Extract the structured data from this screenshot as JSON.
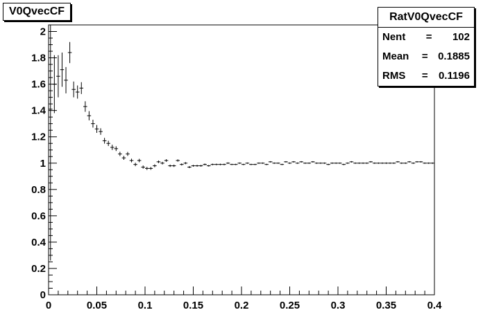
{
  "histogram_title": "V0QvecCF",
  "stats": {
    "name": "RatV0QvecCF",
    "rows": [
      {
        "label": "Nent",
        "value": "102"
      },
      {
        "label": "Mean ",
        "value": "0.1885"
      },
      {
        "label": "RMS  ",
        "value": "0.1196"
      }
    ]
  },
  "chart_data": {
    "type": "scatter",
    "style": "error-bar histogram",
    "title": "V0QvecCF",
    "xlabel": "",
    "ylabel": "",
    "xlim": [
      0,
      0.4
    ],
    "ylim": [
      0,
      2.05
    ],
    "x_ticks": [
      "0",
      "0.05",
      "0.1",
      "0.15",
      "0.2",
      "0.25",
      "0.3",
      "0.35",
      "0.4"
    ],
    "y_ticks": [
      "0",
      "0.2",
      "0.4",
      "0.6",
      "0.8",
      "1",
      "1.2",
      "1.4",
      "1.6",
      "1.8",
      "2"
    ],
    "grid": false,
    "legend": "top-right",
    "bin_width": 0.004,
    "x": [
      0.002,
      0.006,
      0.01,
      0.014,
      0.018,
      0.022,
      0.026,
      0.03,
      0.034,
      0.038,
      0.042,
      0.046,
      0.05,
      0.054,
      0.058,
      0.062,
      0.066,
      0.07,
      0.074,
      0.078,
      0.082,
      0.086,
      0.09,
      0.094,
      0.098,
      0.102,
      0.106,
      0.11,
      0.114,
      0.118,
      0.122,
      0.126,
      0.13,
      0.134,
      0.138,
      0.142,
      0.146,
      0.15,
      0.154,
      0.158,
      0.162,
      0.166,
      0.17,
      0.174,
      0.178,
      0.182,
      0.186,
      0.19,
      0.194,
      0.198,
      0.202,
      0.206,
      0.21,
      0.214,
      0.218,
      0.222,
      0.226,
      0.23,
      0.234,
      0.238,
      0.242,
      0.246,
      0.25,
      0.254,
      0.258,
      0.262,
      0.266,
      0.27,
      0.274,
      0.278,
      0.282,
      0.286,
      0.29,
      0.294,
      0.298,
      0.302,
      0.306,
      0.31,
      0.314,
      0.318,
      0.322,
      0.326,
      0.33,
      0.334,
      0.338,
      0.342,
      0.346,
      0.35,
      0.354,
      0.358,
      0.362,
      0.366,
      0.37,
      0.374,
      0.378,
      0.382,
      0.386,
      0.39,
      0.394,
      0.398
    ],
    "y": [
      1.41,
      1.6,
      1.66,
      1.71,
      1.63,
      1.84,
      1.56,
      1.54,
      1.57,
      1.43,
      1.36,
      1.3,
      1.26,
      1.24,
      1.17,
      1.15,
      1.12,
      1.11,
      1.07,
      1.04,
      1.07,
      1.02,
      0.99,
      1.02,
      0.97,
      0.96,
      0.96,
      0.98,
      1.01,
      1.0,
      1.02,
      0.98,
      0.98,
      1.02,
      0.99,
      1.0,
      0.97,
      0.98,
      0.98,
      0.98,
      0.99,
      0.98,
      0.99,
      0.99,
      0.99,
      0.99,
      1.0,
      0.99,
      0.99,
      1.0,
      0.99,
      1.0,
      0.99,
      0.99,
      1.0,
      1.0,
      0.99,
      1.01,
      1.0,
      1.0,
      0.99,
      1.01,
      1.0,
      1.01,
      1.0,
      1.01,
      1.0,
      1.0,
      1.01,
      1.0,
      1.0,
      1.0,
      0.99,
      1.0,
      1.0,
      1.0,
      0.99,
      1.0,
      1.01,
      1.0,
      1.0,
      1.0,
      1.0,
      1.01,
      1.0,
      1.0,
      1.0,
      1.0,
      1.0,
      1.0,
      1.01,
      1.0,
      1.0,
      1.01,
      1.0,
      1.01,
      1.01,
      1.0,
      1.0,
      1.0
    ],
    "yerr": [
      1.15,
      0.22,
      0.16,
      0.13,
      0.1,
      0.08,
      0.06,
      0.05,
      0.045,
      0.04,
      0.035,
      0.03,
      0.03,
      0.025,
      0.022,
      0.02,
      0.02,
      0.018,
      0.016,
      0.015,
      0.015,
      0.014,
      0.013,
      0.013,
      0.012,
      0.012,
      0.011,
      0.011,
      0.01,
      0.01,
      0.01,
      0.009,
      0.009,
      0.009,
      0.008,
      0.008,
      0.008,
      0.007,
      0.007,
      0.007,
      0.007,
      0.006,
      0.006,
      0.006,
      0.006,
      0.006,
      0.006,
      0.005,
      0.005,
      0.005,
      0.005,
      0.005,
      0.005,
      0.005,
      0.005,
      0.005,
      0.005,
      0.005,
      0.005,
      0.005,
      0.005,
      0.005,
      0.005,
      0.005,
      0.005,
      0.005,
      0.005,
      0.005,
      0.005,
      0.005,
      0.005,
      0.005,
      0.005,
      0.005,
      0.005,
      0.005,
      0.005,
      0.005,
      0.005,
      0.005,
      0.005,
      0.005,
      0.005,
      0.005,
      0.005,
      0.005,
      0.005,
      0.005,
      0.005,
      0.005,
      0.005,
      0.005,
      0.005,
      0.005,
      0.005,
      0.005,
      0.005,
      0.005,
      0.005,
      0.005
    ]
  }
}
